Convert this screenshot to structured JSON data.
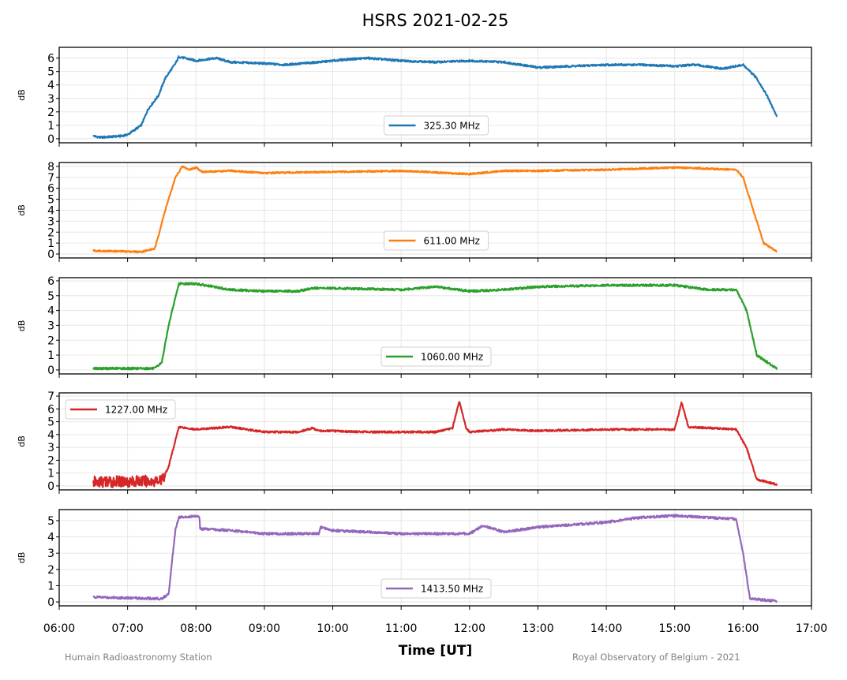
{
  "chart_data": {
    "type": "line",
    "title": "HSRS 2021-02-25",
    "xlabel": "Time [UT]",
    "ylabel": "dB",
    "xlim": [
      6,
      17
    ],
    "xticks": [
      6,
      7,
      8,
      9,
      10,
      11,
      12,
      13,
      14,
      15,
      16,
      17
    ],
    "xtick_labels": [
      "06:00",
      "07:00",
      "08:00",
      "09:00",
      "10:00",
      "11:00",
      "12:00",
      "13:00",
      "14:00",
      "15:00",
      "16:00",
      "17:00"
    ],
    "grid": true,
    "footer_left": "Humain Radioastronomy Station",
    "footer_right": "Royal Observatory of Belgium - 2021",
    "panels": [
      {
        "name": "325.30 MHz",
        "color": "#1f77b4",
        "legend": "lower-center",
        "ylim": [
          -0.3,
          6.8
        ],
        "yticks": [
          0,
          1,
          2,
          3,
          4,
          5,
          6
        ],
        "points": [
          [
            6.5,
            0.2
          ],
          [
            6.6,
            0.1
          ],
          [
            6.9,
            0.2
          ],
          [
            7.0,
            0.3
          ],
          [
            7.2,
            1.0
          ],
          [
            7.3,
            2.2
          ],
          [
            7.45,
            3.2
          ],
          [
            7.55,
            4.5
          ],
          [
            7.7,
            5.6
          ],
          [
            7.75,
            6.1
          ],
          [
            8.0,
            5.8
          ],
          [
            8.3,
            6.0
          ],
          [
            8.5,
            5.7
          ],
          [
            9.0,
            5.6
          ],
          [
            9.3,
            5.5
          ],
          [
            9.8,
            5.7
          ],
          [
            10.2,
            5.9
          ],
          [
            10.5,
            6.0
          ],
          [
            11.0,
            5.8
          ],
          [
            11.5,
            5.7
          ],
          [
            12.0,
            5.8
          ],
          [
            12.5,
            5.7
          ],
          [
            13.0,
            5.3
          ],
          [
            13.5,
            5.4
          ],
          [
            14.0,
            5.5
          ],
          [
            14.5,
            5.5
          ],
          [
            15.0,
            5.4
          ],
          [
            15.3,
            5.5
          ],
          [
            15.7,
            5.2
          ],
          [
            16.0,
            5.5
          ],
          [
            16.2,
            4.5
          ],
          [
            16.35,
            3.2
          ],
          [
            16.5,
            1.6
          ]
        ]
      },
      {
        "name": "611.00 MHz",
        "color": "#ff7f0e",
        "legend": "lower-center",
        "ylim": [
          -0.36,
          8.36
        ],
        "yticks": [
          0,
          1,
          2,
          3,
          4,
          5,
          6,
          7,
          8
        ],
        "points": [
          [
            6.5,
            0.3
          ],
          [
            7.2,
            0.2
          ],
          [
            7.4,
            0.5
          ],
          [
            7.55,
            4.0
          ],
          [
            7.7,
            7.0
          ],
          [
            7.8,
            8.0
          ],
          [
            7.9,
            7.7
          ],
          [
            8.0,
            7.9
          ],
          [
            8.1,
            7.5
          ],
          [
            8.5,
            7.6
          ],
          [
            9.0,
            7.4
          ],
          [
            10.0,
            7.5
          ],
          [
            11.0,
            7.6
          ],
          [
            12.0,
            7.3
          ],
          [
            12.5,
            7.6
          ],
          [
            13.0,
            7.6
          ],
          [
            14.0,
            7.7
          ],
          [
            15.0,
            7.9
          ],
          [
            15.9,
            7.7
          ],
          [
            16.0,
            7.0
          ],
          [
            16.15,
            4.0
          ],
          [
            16.3,
            1.0
          ],
          [
            16.5,
            0.2
          ]
        ]
      },
      {
        "name": "1060.00 MHz",
        "color": "#2ca02c",
        "legend": "lower-center",
        "ylim": [
          -0.27,
          6.21
        ],
        "yticks": [
          0,
          1,
          2,
          3,
          4,
          5,
          6
        ],
        "points": [
          [
            6.5,
            0.1
          ],
          [
            7.4,
            0.1
          ],
          [
            7.5,
            0.5
          ],
          [
            7.6,
            3.0
          ],
          [
            7.75,
            5.8
          ],
          [
            8.0,
            5.8
          ],
          [
            8.5,
            5.4
          ],
          [
            9.0,
            5.3
          ],
          [
            9.5,
            5.3
          ],
          [
            9.7,
            5.5
          ],
          [
            10.0,
            5.5
          ],
          [
            11.0,
            5.4
          ],
          [
            11.5,
            5.6
          ],
          [
            12.0,
            5.3
          ],
          [
            12.5,
            5.4
          ],
          [
            13.0,
            5.6
          ],
          [
            14.0,
            5.7
          ],
          [
            15.0,
            5.7
          ],
          [
            15.5,
            5.4
          ],
          [
            15.9,
            5.4
          ],
          [
            16.05,
            4.0
          ],
          [
            16.2,
            1.0
          ],
          [
            16.5,
            0.05
          ]
        ]
      },
      {
        "name": "1227.00 MHz",
        "color": "#d62728",
        "legend": "upper-left",
        "ylim": [
          -0.31,
          7.25
        ],
        "yticks": [
          0,
          1,
          2,
          3,
          4,
          5,
          6,
          7
        ],
        "points": [
          [
            6.5,
            0.3
          ],
          [
            7.5,
            0.4
          ],
          [
            7.6,
            1.5
          ],
          [
            7.75,
            4.6
          ],
          [
            8.0,
            4.4
          ],
          [
            8.5,
            4.6
          ],
          [
            9.0,
            4.2
          ],
          [
            9.5,
            4.2
          ],
          [
            9.7,
            4.5
          ],
          [
            9.8,
            4.3
          ],
          [
            10.5,
            4.2
          ],
          [
            11.5,
            4.2
          ],
          [
            11.75,
            4.5
          ],
          [
            11.85,
            6.6
          ],
          [
            11.95,
            4.5
          ],
          [
            12.0,
            4.2
          ],
          [
            12.5,
            4.4
          ],
          [
            13.0,
            4.3
          ],
          [
            14.0,
            4.4
          ],
          [
            15.0,
            4.4
          ],
          [
            15.1,
            6.5
          ],
          [
            15.2,
            4.6
          ],
          [
            15.9,
            4.4
          ],
          [
            16.05,
            3.0
          ],
          [
            16.2,
            0.5
          ],
          [
            16.5,
            0.1
          ]
        ]
      },
      {
        "name": "1413.50 MHz",
        "color": "#9467bd",
        "legend": "lower-center",
        "ylim": [
          -0.24,
          5.68
        ],
        "yticks": [
          0,
          1,
          2,
          3,
          4,
          5
        ],
        "points": [
          [
            6.5,
            0.3
          ],
          [
            7.5,
            0.2
          ],
          [
            7.6,
            0.5
          ],
          [
            7.7,
            4.5
          ],
          [
            7.75,
            5.2
          ],
          [
            8.05,
            5.3
          ],
          [
            8.06,
            4.5
          ],
          [
            8.5,
            4.4
          ],
          [
            9.0,
            4.2
          ],
          [
            9.8,
            4.2
          ],
          [
            9.82,
            4.6
          ],
          [
            10.0,
            4.4
          ],
          [
            11.0,
            4.2
          ],
          [
            12.0,
            4.2
          ],
          [
            12.2,
            4.7
          ],
          [
            12.5,
            4.3
          ],
          [
            13.0,
            4.6
          ],
          [
            14.0,
            4.9
          ],
          [
            14.5,
            5.2
          ],
          [
            15.0,
            5.3
          ],
          [
            15.9,
            5.1
          ],
          [
            16.0,
            3.0
          ],
          [
            16.1,
            0.2
          ],
          [
            16.5,
            0.05
          ]
        ]
      }
    ]
  }
}
